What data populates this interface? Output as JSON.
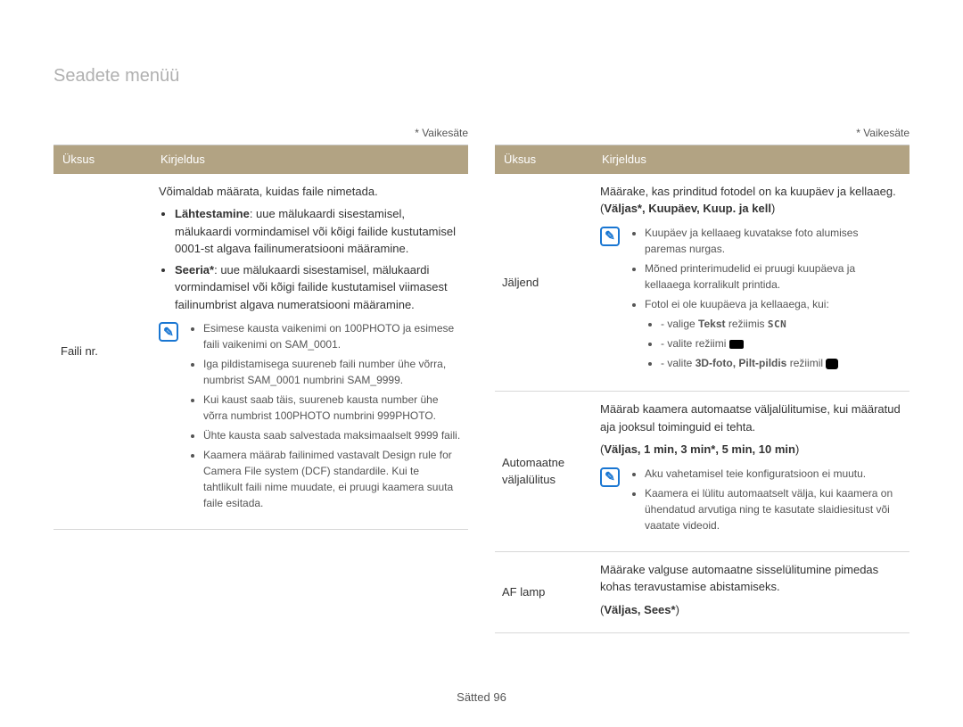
{
  "page_title": "Seadete menüü",
  "default_label": "* Vaikesäte",
  "header": {
    "col_item": "Üksus",
    "col_desc": "Kirjeldus"
  },
  "footer": {
    "section": "Sätted",
    "page": "96"
  },
  "note_icon": "✎",
  "colors": {
    "header_bg": "#b2a383",
    "header_fg": "#ffffff",
    "title_fg": "#b0b0b0",
    "note_icon": "#1976d2",
    "border": "#d8d8d8"
  },
  "left": {
    "row1": {
      "item": "Faili nr.",
      "intro": "Võimaldab määrata, kuidas faile nimetada.",
      "bullet1_label": "Lähtestamine",
      "bullet1_text": ": uue mälukaardi sisestamisel, mälukaardi vormindamisel või kõigi failide kustutamisel 0001-st algava failinumeratsiooni määramine.",
      "bullet2_label": "Seeria*",
      "bullet2_text": ": uue mälukaardi sisestamisel, mälukaardi vormindamisel või kõigi failide kustutamisel viimasest failinumbrist algava numeratsiooni määramine.",
      "note1": "Esimese kausta vaikenimi on 100PHOTO ja esimese faili vaikenimi on SAM_0001.",
      "note2": "Iga pildistamisega suureneb faili number ühe võrra, numbrist SAM_0001 numbrini SAM_9999.",
      "note3": "Kui kaust saab täis, suureneb kausta number ühe võrra numbrist 100PHOTO numbrini 999PHOTO.",
      "note4": "Ühte kausta saab salvestada maksimaalselt 9999 faili.",
      "note5": "Kaamera määrab failinimed vastavalt Design rule for Camera File system (DCF) standardile. Kui te tahtlikult faili nime muudate, ei pruugi kaamera suuta faile esitada."
    }
  },
  "right": {
    "row1": {
      "item": "Jäljend",
      "intro1": "Määrake, kas prinditud fotodel on ka kuupäev ja kellaaeg. (",
      "options": "Väljas*, Kuupäev, Kuup. ja kell",
      "intro2": ")",
      "note1": "Kuupäev ja kellaaeg kuvatakse foto alumises paremas nurgas.",
      "note2": "Mõned printerimudelid ei pruugi kuupäeva ja kellaaega korralikult printida.",
      "note3": "Fotol ei ole kuupäeva ja kellaaega, kui:",
      "note3a_pre": "valige ",
      "note3a_b": "Tekst",
      "note3a_post": " režiimis ",
      "note3b": "valite režiimi ",
      "note3c_pre": "valite ",
      "note3c_b": "3D-foto, Pilt-pildis",
      "note3c_post": " režiimil "
    },
    "row2": {
      "item": "Automaatne väljalülitus",
      "intro": "Määrab kaamera automaatse väljalülitumise, kui määratud aja jooksul toiminguid ei tehta.",
      "optline_pre": "(",
      "options": "Väljas, 1 min, 3 min*, 5 min, 10 min",
      "optline_post": ")",
      "note1": "Aku vahetamisel teie konfiguratsioon ei muutu.",
      "note2": "Kaamera ei lülitu automaatselt välja, kui kaamera on ühendatud arvutiga ning te kasutate slaidiesitust või vaatate videoid."
    },
    "row3": {
      "item": "AF lamp",
      "intro": "Määrake valguse automaatne sisselülitumine pimedas kohas teravustamise abistamiseks.",
      "optline_pre": "(",
      "options": "Väljas, Sees*",
      "optline_post": ")"
    }
  }
}
